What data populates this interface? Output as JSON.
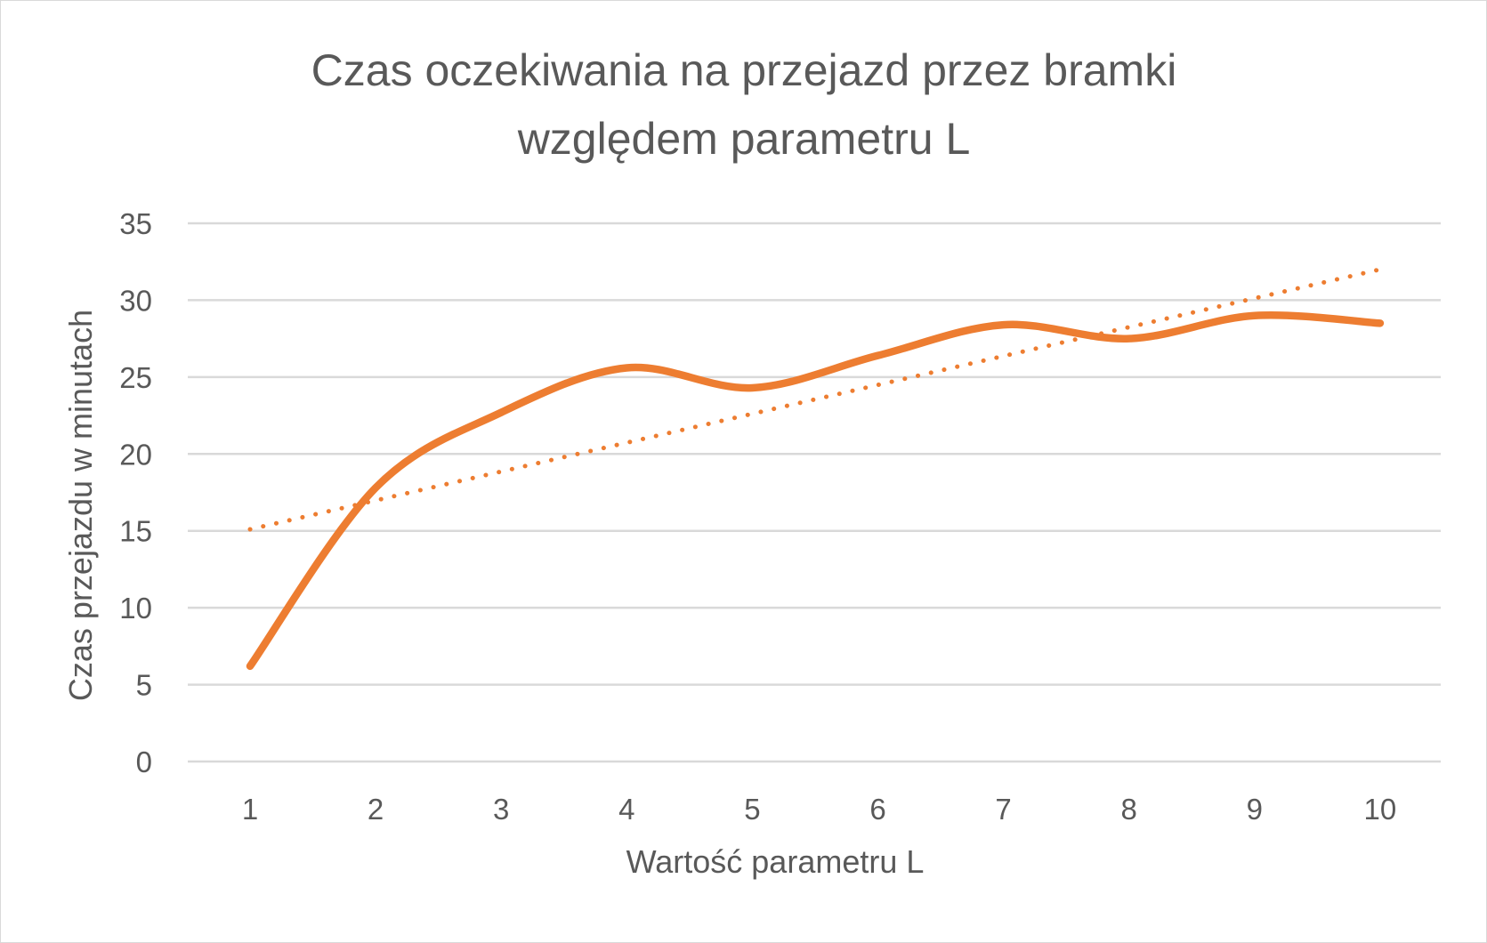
{
  "chart_data": {
    "type": "line",
    "title_lines": [
      "Czas oczekiwania na przejazd przez bramki",
      "względem parametru L"
    ],
    "xlabel": "Wartość parametru L",
    "ylabel": "Czas przejazdu w minutach",
    "categories": [
      "1",
      "2",
      "3",
      "4",
      "5",
      "6",
      "7",
      "8",
      "9",
      "10"
    ],
    "y_ticks": [
      "0",
      "5",
      "10",
      "15",
      "20",
      "25",
      "30",
      "35"
    ],
    "ylim": [
      0,
      35
    ],
    "grid": true,
    "legend": "none",
    "series": [
      {
        "values": [
          6.2,
          17.8,
          22.7,
          25.6,
          24.3,
          26.4,
          28.4,
          27.5,
          29.0,
          28.5
        ],
        "color": "#ED7D31",
        "style": "smooth-solid"
      }
    ],
    "trendline": {
      "kind": "linear",
      "color": "#ED7D31",
      "style": "dotted",
      "start": 15.1,
      "end": 32.0
    }
  }
}
